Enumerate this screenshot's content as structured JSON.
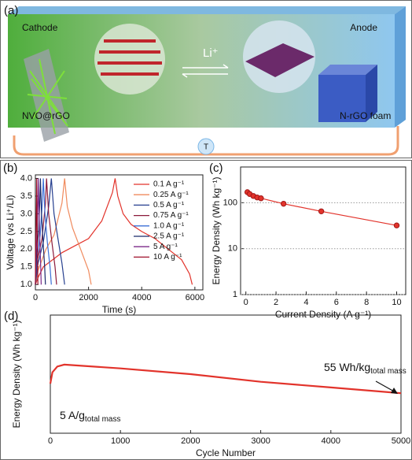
{
  "diagram": {
    "label": "(a)",
    "cathode": "Cathode",
    "anode": "Anode",
    "ion": "Li⁺",
    "cathode_material": "NVO@rGO",
    "anode_material": "N-rGO foam",
    "bulb": "T"
  },
  "chart_data": [
    {
      "type": "line",
      "label": "(b)",
      "x_label": "Time (s)",
      "y_label": "Voltage (vs Li⁺/Li)",
      "xlim": [
        0,
        6300
      ],
      "xticks": [
        0,
        2000,
        4000,
        6000
      ],
      "ylim": [
        0.85,
        4.1
      ],
      "yticks": [
        {
          "value": 1,
          "label": "1.0"
        },
        1.5,
        {
          "value": 2,
          "label": "2.0"
        },
        2.5,
        {
          "value": 3,
          "label": "3.0"
        },
        3.5,
        {
          "value": 4,
          "label": "4.0"
        }
      ],
      "series": [
        {
          "name": "0.1 A g⁻¹",
          "color": "#e2332b",
          "x": [
            0,
            100,
            300,
            1000,
            1500,
            2000,
            2500,
            2900,
            3000,
            3100,
            3300,
            3600,
            4000,
            4500,
            5000,
            5500,
            5800,
            5900
          ],
          "values": [
            1.0,
            1.2,
            1.5,
            1.9,
            2.1,
            2.3,
            2.8,
            3.6,
            4.0,
            3.5,
            3.0,
            2.7,
            2.5,
            2.3,
            2.0,
            1.7,
            1.3,
            1.0
          ]
        },
        {
          "name": "0.25 A g⁻¹",
          "color": "#f08a5d",
          "x": [
            0,
            100,
            400,
            700,
            1000,
            1100,
            1200,
            1400,
            1700,
            2000,
            2100
          ],
          "values": [
            1.0,
            1.4,
            2.0,
            2.4,
            3.3,
            4.0,
            3.2,
            2.6,
            2.0,
            1.4,
            1.0
          ]
        },
        {
          "name": "0.5 A g⁻¹",
          "color": "#263f8f",
          "x": [
            0,
            100,
            300,
            500,
            600,
            700,
            850,
            1000,
            1100
          ],
          "values": [
            1.0,
            1.6,
            2.2,
            3.2,
            4.0,
            3.0,
            2.3,
            1.6,
            1.0
          ]
        },
        {
          "name": "0.75 A g⁻¹",
          "color": "#8b1a3a",
          "x": [
            0,
            80,
            250,
            380,
            420,
            500,
            620,
            740,
            800
          ],
          "values": [
            1.0,
            1.7,
            2.3,
            3.3,
            4.0,
            3.0,
            2.2,
            1.5,
            1.0
          ]
        },
        {
          "name": "1.0 A g⁻¹",
          "color": "#3b6fd6",
          "x": [
            0,
            60,
            180,
            270,
            300,
            360,
            450,
            550,
            600
          ],
          "values": [
            1.0,
            1.7,
            2.4,
            3.4,
            4.0,
            3.0,
            2.2,
            1.5,
            1.0
          ]
        },
        {
          "name": "2.5 A g⁻¹",
          "color": "#1b2a6b",
          "x": [
            0,
            40,
            120,
            170,
            190,
            230,
            290,
            350,
            380
          ],
          "values": [
            1.0,
            1.8,
            2.5,
            3.4,
            4.0,
            3.0,
            2.2,
            1.5,
            1.0
          ]
        },
        {
          "name": "5 A g⁻¹",
          "color": "#7b2a8a",
          "x": [
            0,
            25,
            70,
            100,
            110,
            140,
            170,
            200,
            220
          ],
          "values": [
            1.0,
            1.8,
            2.6,
            3.5,
            4.0,
            3.0,
            2.2,
            1.5,
            1.0
          ]
        },
        {
          "name": "10 A g⁻¹",
          "color": "#a0102a",
          "x": [
            0,
            10,
            30,
            45,
            50,
            60,
            75,
            85,
            95
          ],
          "values": [
            1.0,
            1.9,
            2.7,
            3.5,
            4.0,
            3.0,
            2.2,
            1.5,
            1.0
          ]
        }
      ]
    },
    {
      "type": "scatter",
      "label": "(c)",
      "x_label": "Current Density (A g⁻¹)",
      "y_label": "Energy Density (Wh kg⁻¹)",
      "xlim": [
        -0.35,
        10.6
      ],
      "xticks": [
        0,
        2,
        4,
        6,
        8,
        10
      ],
      "ylim": [
        1,
        600
      ],
      "yticks": [
        1,
        10,
        100
      ],
      "log_y": true,
      "grid": true,
      "color": "#e2332b",
      "x": [
        0.1,
        0.25,
        0.5,
        0.75,
        1.0,
        2.5,
        5,
        10
      ],
      "values": [
        170,
        155,
        140,
        130,
        125,
        95,
        65,
        32
      ]
    },
    {
      "type": "line",
      "label": "(d)",
      "x_label": "Cycle Number",
      "y_label": "Energy Density (Wh kg⁻¹)",
      "xlim": [
        0,
        5000
      ],
      "xticks": [
        0,
        1000,
        2000,
        3000,
        4000,
        5000
      ],
      "ylim": [
        34,
        96
      ],
      "series": [
        {
          "color": "#e2332b",
          "x": [
            0,
            30,
            100,
            200,
            1000,
            2000,
            3000,
            4000,
            5000
          ],
          "values": [
            60,
            66,
            69,
            70,
            68,
            65,
            61,
            58,
            55
          ]
        }
      ],
      "annotations": [
        {
          "text": "55 Wh/kg",
          "sub": "total mass"
        },
        {
          "text": "5 A/g",
          "sub": "total mass"
        }
      ]
    }
  ]
}
